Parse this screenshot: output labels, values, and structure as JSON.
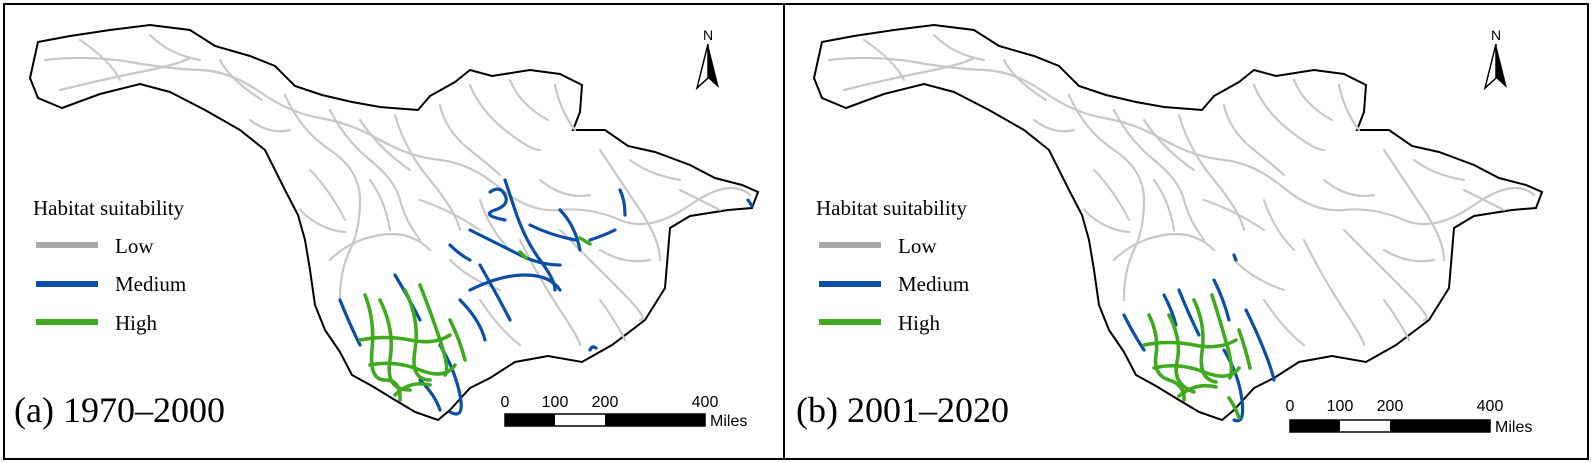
{
  "panels": [
    {
      "label": "(a) 1970–2000",
      "north": "N",
      "legend": {
        "title": "Habitat suitability",
        "items": [
          {
            "label": "Low",
            "color": "#aaaaaa"
          },
          {
            "label": "Medium",
            "color": "#0a4ea8"
          },
          {
            "label": "High",
            "color": "#3faa1e"
          }
        ]
      },
      "scale": {
        "ticks": [
          "0",
          "100",
          "200",
          "400"
        ],
        "unit": "Miles"
      }
    },
    {
      "label": "(b) 2001–2020",
      "north": "N",
      "legend": {
        "title": "Habitat suitability",
        "items": [
          {
            "label": "Low",
            "color": "#aaaaaa"
          },
          {
            "label": "Medium",
            "color": "#0a4ea8"
          },
          {
            "label": "High",
            "color": "#3faa1e"
          }
        ]
      },
      "scale": {
        "ticks": [
          "0",
          "100",
          "200",
          "400"
        ],
        "unit": "Miles"
      }
    }
  ],
  "colors": {
    "basin_fill": "#ffffff",
    "border": "#000000",
    "low": "#c8c8c8",
    "medium": "#0a4ea8",
    "high": "#3faa1e"
  }
}
